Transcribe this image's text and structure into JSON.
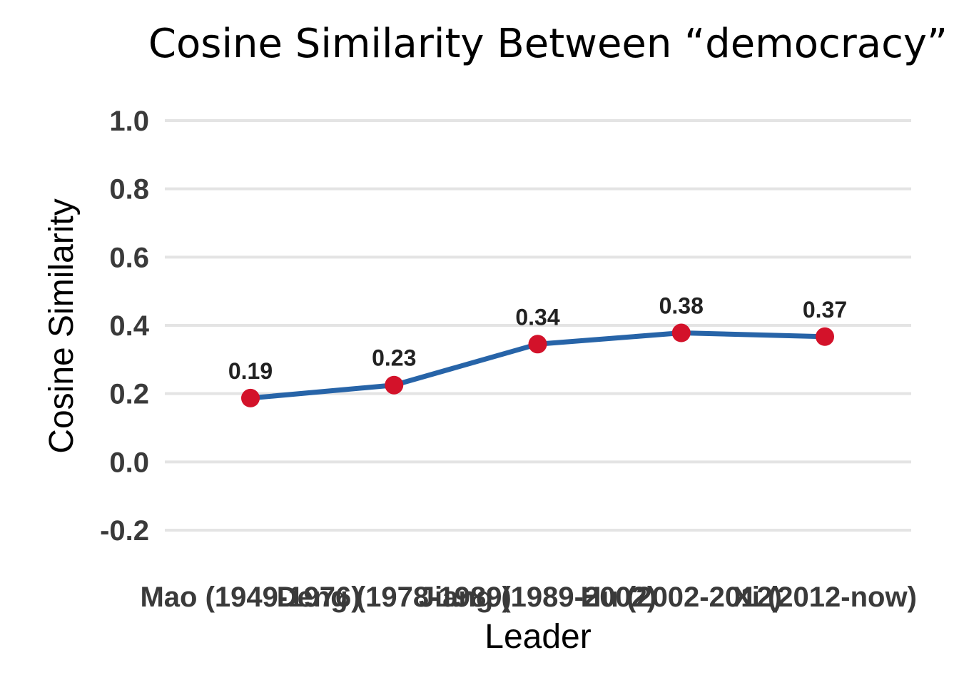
{
  "colors": {
    "line": "#2764a8",
    "point": "#d3122a",
    "grid": "#e4e4e4"
  },
  "chart_data": {
    "type": "line",
    "title": "Cosine Similarity Between “democracy”",
    "xlabel": "Leader",
    "ylabel": "Cosine Similarity",
    "categories": [
      "Mao (1949-1976)",
      "Deng (1978-1989)",
      "Jiang (1989-2002)",
      "Hu (2002-2012)",
      "Xi (2012-now)"
    ],
    "series": [
      {
        "values": [
          0.19,
          0.23,
          0.34,
          0.38,
          0.37
        ],
        "data_labels": [
          "0.19",
          "0.23",
          "0.34",
          "0.38",
          "0.37"
        ],
        "plotted": [
          0.187,
          0.225,
          0.345,
          0.378,
          0.367
        ]
      }
    ],
    "ylim": [
      -0.2,
      1.0
    ],
    "yticks": [
      1.0,
      0.8,
      0.6,
      0.4,
      0.2,
      0.0,
      -0.2
    ],
    "ytick_labels": [
      "1.0",
      "0.8",
      "0.6",
      "0.4",
      "0.2",
      "0.0",
      "-0.2"
    ],
    "grid": true,
    "legend": "none"
  }
}
